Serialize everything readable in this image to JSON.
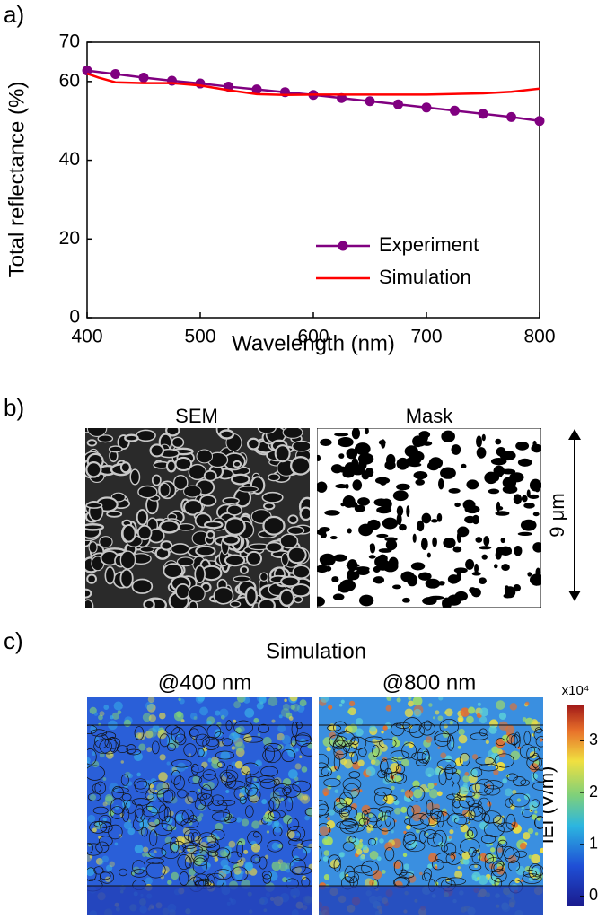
{
  "chart_data": {
    "type": "line",
    "panel_label": "a)",
    "x_label": "Wavelength (nm)",
    "y_label": "Total reflectance (%)",
    "xlim": [
      400,
      800
    ],
    "xticks": [
      400,
      500,
      600,
      700,
      800
    ],
    "ylim": [
      0,
      70
    ],
    "yticks": [
      0,
      20,
      40,
      60,
      70
    ],
    "legend": "lower-right",
    "series": [
      {
        "name": "Experiment",
        "color": "#800080",
        "markers": true,
        "x": [
          400,
          425,
          450,
          475,
          500,
          525,
          550,
          575,
          600,
          625,
          650,
          675,
          700,
          725,
          750,
          775,
          800
        ],
        "values": [
          62.8,
          61.9,
          61.0,
          60.2,
          59.5,
          58.7,
          58.0,
          57.3,
          56.6,
          55.8,
          55.0,
          54.2,
          53.4,
          52.6,
          51.8,
          51.0,
          50.0
        ]
      },
      {
        "name": "Simulation",
        "color": "#ff0000",
        "markers": false,
        "x": [
          400,
          410,
          425,
          450,
          475,
          500,
          525,
          550,
          575,
          600,
          625,
          650,
          700,
          750,
          775,
          800
        ],
        "values": [
          62.0,
          61.0,
          59.8,
          59.6,
          59.6,
          59.0,
          57.8,
          56.8,
          56.6,
          56.7,
          56.7,
          56.7,
          56.7,
          57.0,
          57.4,
          58.2
        ]
      }
    ]
  },
  "panel_b": {
    "panel_label": "b)",
    "left_title": "SEM",
    "right_title": "Mask",
    "scale_label": "9 μm"
  },
  "panel_c": {
    "panel_label": "c)",
    "title": "Simulation",
    "left_title": "@400 nm",
    "right_title": "@800 nm",
    "colorbar": {
      "label": "IEI (V/m)",
      "multiplier": "x10⁴",
      "lim": [
        -0.2,
        3.7
      ],
      "ticks": [
        0,
        1,
        2,
        3
      ]
    }
  }
}
